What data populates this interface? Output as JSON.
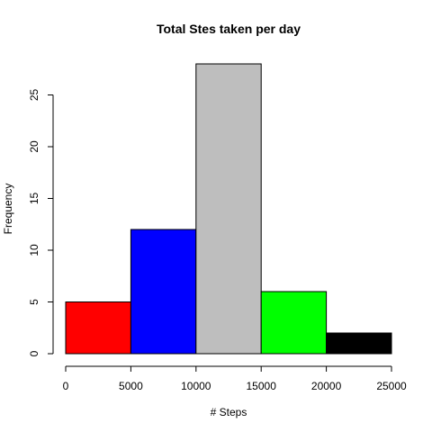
{
  "chart_data": {
    "type": "bar",
    "title": "Total Stes taken per day",
    "xlabel": "# Steps",
    "ylabel": "Frequency",
    "bins": [
      {
        "start": 0,
        "end": 5000,
        "value": 5,
        "color": "#FF0000"
      },
      {
        "start": 5000,
        "end": 10000,
        "value": 12,
        "color": "#0000FF"
      },
      {
        "start": 10000,
        "end": 15000,
        "value": 28,
        "color": "#BEBEBE"
      },
      {
        "start": 15000,
        "end": 20000,
        "value": 6,
        "color": "#00FF00"
      },
      {
        "start": 20000,
        "end": 25000,
        "value": 2,
        "color": "#000000"
      }
    ],
    "xlim": [
      0,
      25000
    ],
    "ylim": [
      0,
      28
    ],
    "xticks": [
      0,
      5000,
      10000,
      15000,
      20000,
      25000
    ],
    "yticks": [
      0,
      5,
      10,
      15,
      20,
      25
    ],
    "grid": false,
    "legend": "none"
  }
}
